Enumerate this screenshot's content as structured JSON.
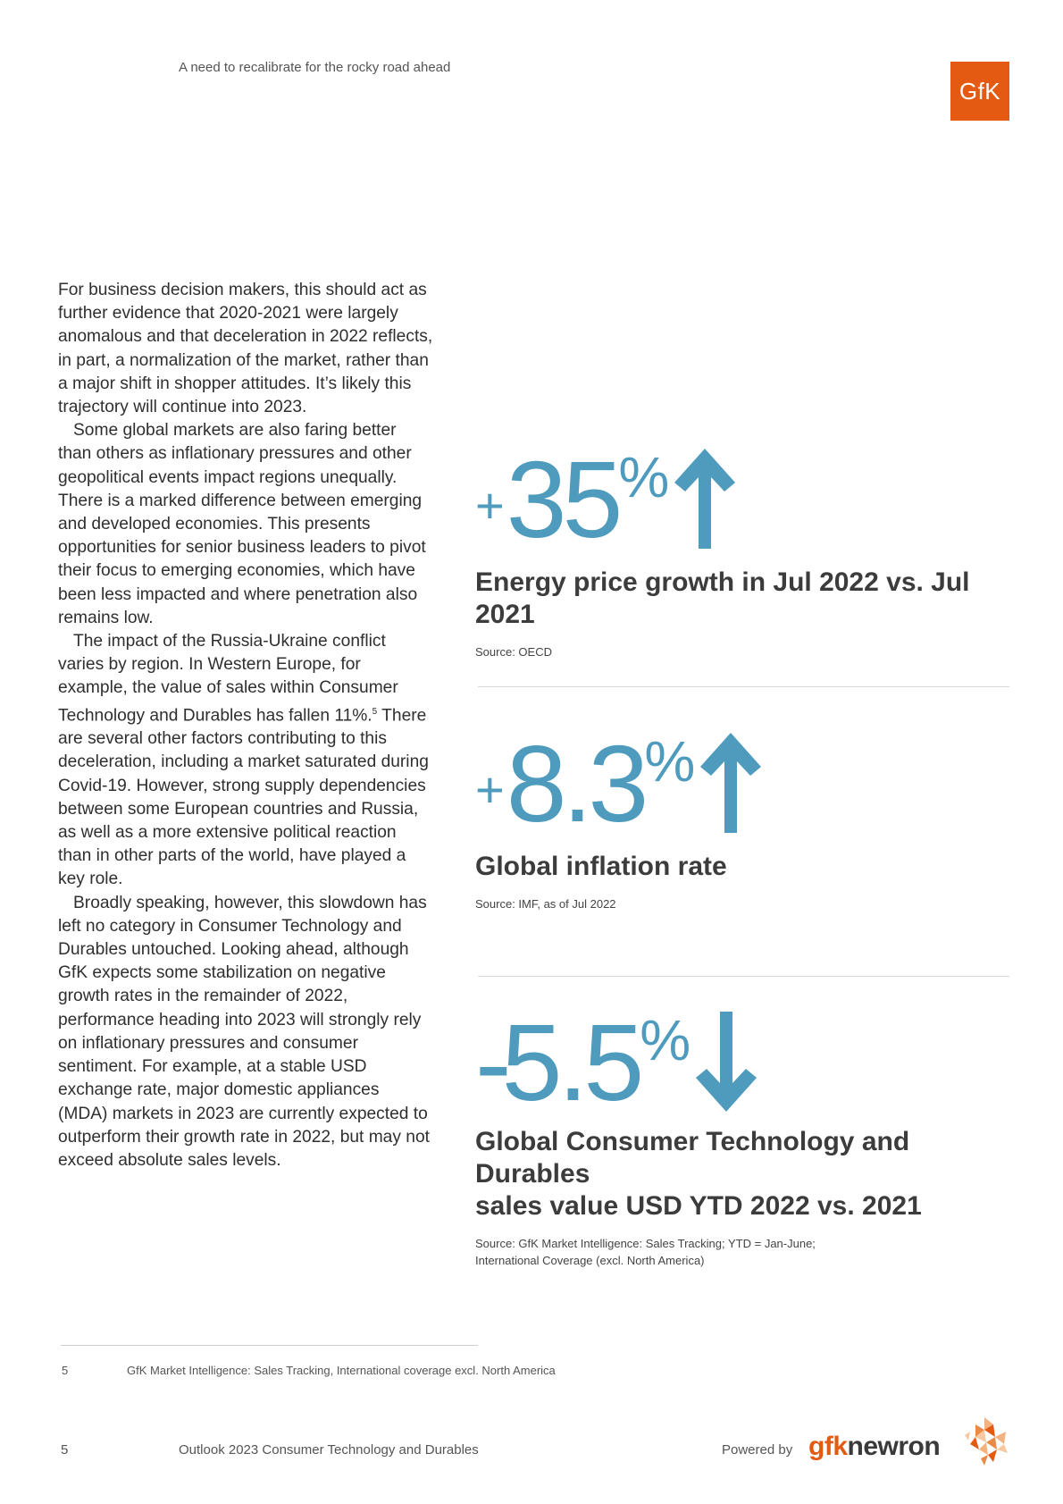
{
  "header": {
    "subtitle": "A need to recalibrate for the rocky road ahead",
    "logo_text": "GfK"
  },
  "body": {
    "paragraphs": [
      "For business decision makers, this should act as further evidence that 2020-2021 were largely anomalous and that deceleration in 2022 reflects, in part, a normalization of the market, rather than a major shift in shopper attitudes. It’s likely this trajectory will continue into 2023.",
      "Some global markets are also faring better than others as inflationary pressures and other geopolitical events impact regions unequally. There is a marked difference between emerging and developed economies. This presents opportunities for senior business leaders to pivot their focus to emerging economies, which have been less impacted and where penetration also remains low.",
      "The impact of the Russia-Ukraine conflict varies by region. In Western Europe, for example, the value of sales within Consumer Technology and Durables has fallen 11%.",
      "Broadly speaking, however, this slowdown has left no category in Consumer Technology and Durables untouched. Looking ahead, although GfK expects some stabilization on negative growth rates in the remainder of 2022, performance heading into 2023 will strongly rely on inflationary pressures and consumer sentiment. For example, at a stable USD exchange rate, major domestic appliances (MDA) markets in 2023 are currently expected to outperform their growth rate in 2022, but may not exceed absolute sales levels."
    ],
    "p3_sup": "5",
    "p3_cont": " There are several other factors contributing to this deceleration, including a market saturated during Covid-19. However, strong supply dependencies between some European countries and Russia, as well as a more extensive political reaction than in other parts of the world, have played a key role."
  },
  "stats": [
    {
      "sign": "+",
      "number": "35",
      "percent": "%",
      "arrow": "up",
      "label": "Energy price growth in Jul 2022 vs. Jul 2021",
      "source": "Source: OECD"
    },
    {
      "sign": "+",
      "number": "8.3",
      "percent": "%",
      "arrow": "up",
      "label": "Global inflation rate",
      "source": "Source: IMF, as of Jul 2022"
    },
    {
      "sign": "-",
      "number": "5.5",
      "percent": "%",
      "arrow": "down",
      "label_line1": "Global Consumer Technology and Durables",
      "label_line2": "sales value USD YTD 2022 vs. 2021",
      "source_line1": "Source: GfK Market Intelligence: Sales Tracking; YTD = Jan-June;",
      "source_line2": "International Coverage (excl. North America)"
    }
  ],
  "footnote": {
    "number": "5",
    "text": "GfK Market Intelligence: Sales Tracking, International coverage excl. North America"
  },
  "footer": {
    "page_number": "5",
    "doc_title": "Outlook 2023 Consumer Technology and Durables",
    "powered_by": "Powered by",
    "brand_g": "gfk",
    "brand_n": "newron"
  },
  "colors": {
    "accent_blue": "#4e9bbd",
    "brand_orange": "#e55a13"
  }
}
